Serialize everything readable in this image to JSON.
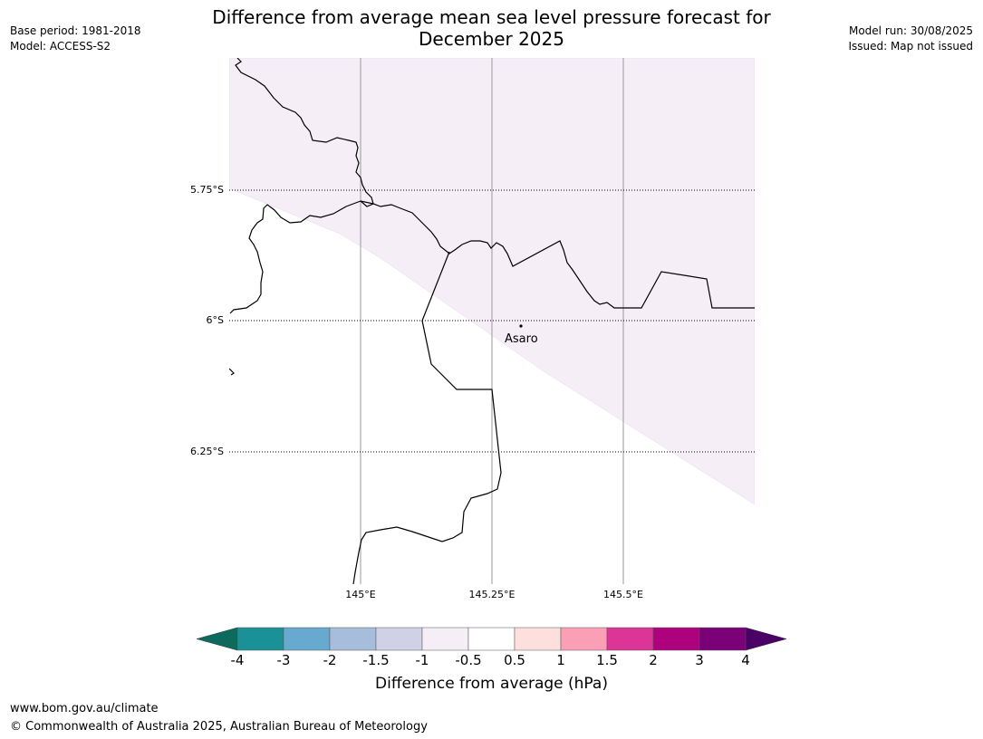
{
  "header": {
    "base_period": "Base period: 1981-2018",
    "model": "Model: ACCESS-S2",
    "model_run": "Model run: 30/08/2025",
    "issued": "Issued: Map not issued",
    "title_line1": "Difference from average mean sea level pressure forecast for",
    "title_line2": "December 2025"
  },
  "map": {
    "lat_labels": [
      "5.75°S",
      "6°S",
      "6.25°S"
    ],
    "lon_labels": [
      "145°E",
      "145.25°E",
      "145.5°E"
    ],
    "place": "Asaro",
    "shaded_class_color": "#f5eef7"
  },
  "colorbar": {
    "label": "Difference from average (hPa)",
    "ticks": [
      "-4",
      "-3",
      "-2",
      "-1.5",
      "-1",
      "-0.5",
      "0.5",
      "1",
      "1.5",
      "2",
      "3",
      "4"
    ],
    "under_color": "#0d6b5e",
    "over_color": "#4b0068",
    "colors": [
      "#1a9197",
      "#67a9cf",
      "#a6bddb",
      "#d0d1e6",
      "#f5eef7",
      "#ffffff",
      "#fde0dd",
      "#fa9fb5",
      "#dd3497",
      "#ae017e",
      "#7a0177"
    ]
  },
  "footer": {
    "url": "www.bom.gov.au/climate",
    "copyright": "© Commonwealth of Australia 2025, Australian Bureau of Meteorology"
  }
}
